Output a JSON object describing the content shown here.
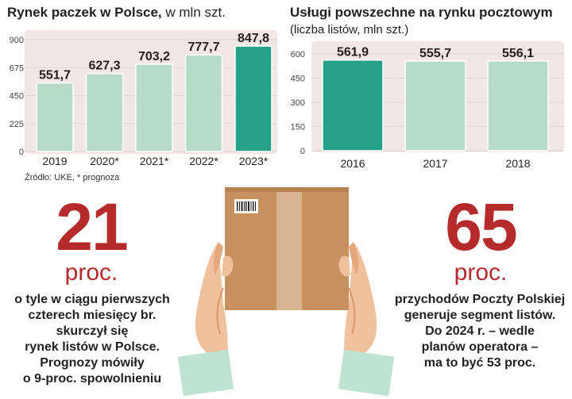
{
  "left_chart": {
    "title_bold": "Rynek paczek w Polsce,",
    "title_rest": " w mln szt.",
    "source": "Źródło: UKE, * prognoza"
  },
  "right_chart": {
    "title_bold": "Usługi powszechne na rynku pocztowym",
    "subtitle": "(liczba listów, mln szt.)"
  },
  "stat_left": {
    "number": "21",
    "unit": "proc.",
    "lines": [
      "o tyle w ciągu pierwszych",
      "czterech miesięcy br.",
      "skurczył się",
      "rynek listów w Polsce.",
      "Prognozy mówiły",
      "o 9-proc. spowolnieniu"
    ]
  },
  "stat_right": {
    "number": "65",
    "unit": "proc.",
    "lines": [
      "przychodów Poczty Polskiej",
      "generuje segment listów.",
      "Do 2024 r. – wedle",
      "planów operatora –",
      "ma to być 53 proc."
    ]
  },
  "colors": {
    "bar_light": "#b6dcc9",
    "bar_highlight": "#27a088",
    "chart_bg": "#f2e6e6",
    "accent_red": "#b52a2b",
    "box": "#c6915f"
  },
  "chart_data": [
    {
      "type": "bar",
      "title": "Rynek paczek w Polsce, w mln szt.",
      "categories": [
        "2019",
        "2020*",
        "2021*",
        "2022*",
        "2023*"
      ],
      "values": [
        551.7,
        627.3,
        703.2,
        777.7,
        847.8
      ],
      "value_labels": [
        "551,7",
        "627,3",
        "703,2",
        "777,7",
        "847,8"
      ],
      "highlight_index": 4,
      "yticks": [
        0,
        225,
        450,
        675,
        900
      ],
      "ylim": [
        0,
        900
      ],
      "grid": true
    },
    {
      "type": "bar",
      "title": "Usługi powszechne na rynku pocztowym",
      "subtitle": "(liczba listów, mln szt.)",
      "categories": [
        "2016",
        "2017",
        "2018"
      ],
      "values": [
        561.9,
        555.7,
        556.1
      ],
      "value_labels": [
        "561,9",
        "555,7",
        "556,1"
      ],
      "highlight_index": 0,
      "yticks": [
        0,
        150,
        300,
        450,
        600
      ],
      "ylim": [
        0,
        600
      ],
      "grid": true
    }
  ]
}
